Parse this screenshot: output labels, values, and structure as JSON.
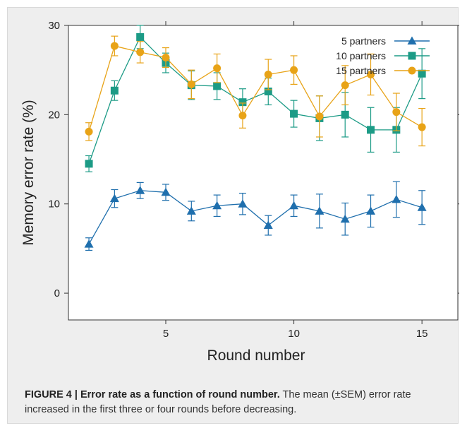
{
  "chart_data": {
    "type": "line",
    "title": "",
    "xlabel": "Round number",
    "ylabel": "Memory error rate (%)",
    "xlim": [
      1.2,
      16.4
    ],
    "ylim": [
      -3,
      30
    ],
    "xticks": [
      5,
      10,
      15
    ],
    "yticks": [
      0,
      10,
      20,
      30
    ],
    "grid": false,
    "legend_position": "top-right",
    "x": [
      2,
      3,
      4,
      5,
      6,
      7,
      8,
      9,
      10,
      11,
      12,
      13,
      14,
      15
    ],
    "series": [
      {
        "name": "5 partners",
        "marker": "triangle",
        "color": "#1f6fad",
        "values": [
          5.5,
          10.6,
          11.5,
          11.3,
          9.2,
          9.8,
          10.0,
          7.6,
          9.8,
          9.2,
          8.3,
          9.2,
          10.5,
          9.6
        ],
        "errors": [
          0.7,
          1.0,
          0.9,
          0.9,
          1.1,
          1.2,
          1.2,
          1.1,
          1.2,
          1.9,
          1.8,
          1.8,
          2.0,
          1.9
        ]
      },
      {
        "name": "10 partners",
        "marker": "square",
        "color": "#1c9b86",
        "values": [
          14.5,
          22.7,
          28.7,
          25.8,
          23.3,
          23.2,
          21.4,
          22.6,
          20.1,
          19.6,
          20.0,
          18.3,
          18.3,
          24.6
        ],
        "errors": [
          0.9,
          1.1,
          1.3,
          1.1,
          1.6,
          1.5,
          1.5,
          1.5,
          1.5,
          2.5,
          2.5,
          2.5,
          2.5,
          2.8
        ]
      },
      {
        "name": "15 partners",
        "marker": "circle",
        "color": "#e8a317",
        "values": [
          18.1,
          27.7,
          27.0,
          26.4,
          23.4,
          25.2,
          19.9,
          24.5,
          25.0,
          19.8,
          23.3,
          24.5,
          20.3,
          18.6
        ],
        "errors": [
          1.0,
          1.1,
          1.2,
          1.1,
          1.6,
          1.6,
          1.4,
          1.7,
          1.6,
          2.3,
          2.2,
          2.3,
          2.1,
          2.1
        ]
      }
    ]
  },
  "caption": {
    "label": "FIGURE 4 | Error rate as a function of round number.",
    "text": " The mean (±SEM) error rate increased in the first three or four rounds before decreasing."
  }
}
